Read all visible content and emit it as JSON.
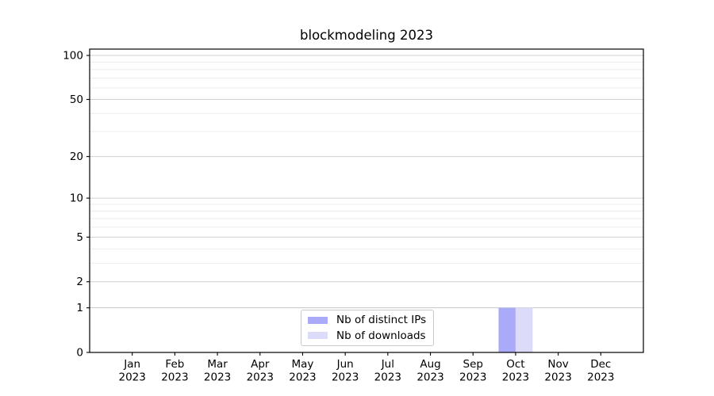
{
  "figure": {
    "background": "#ffffff"
  },
  "chart_data": {
    "type": "bar",
    "title": "blockmodeling 2023",
    "categories": [
      "Jan",
      "Feb",
      "Mar",
      "Apr",
      "May",
      "Jun",
      "Jul",
      "Aug",
      "Sep",
      "Oct",
      "Nov",
      "Dec"
    ],
    "category_year_label": "2023",
    "series": [
      {
        "name": "Nb of distinct IPs",
        "color": "#aaaaf8",
        "values": [
          0,
          0,
          0,
          0,
          0,
          0,
          0,
          0,
          0,
          1,
          0,
          0
        ]
      },
      {
        "name": "Nb of downloads",
        "color": "#dcdcfa",
        "values": [
          0,
          0,
          0,
          0,
          0,
          0,
          0,
          0,
          0,
          1,
          0,
          0
        ]
      }
    ],
    "xlabel": "",
    "ylabel": "",
    "y_axis": {
      "scale": "log1p",
      "major_ticks": [
        0,
        1,
        2,
        5,
        10,
        20,
        50,
        100
      ],
      "minor_ticks": [
        3,
        4,
        6,
        7,
        8,
        9,
        30,
        40,
        60,
        70,
        80,
        90
      ],
      "ylim": [
        0,
        111
      ],
      "grid": "both"
    },
    "legend": {
      "position": "lower center"
    },
    "colors": {
      "axis_frame": "#000000",
      "tick_text": "#000000",
      "grid_major": "#d0d0d0",
      "grid_minor": "#ebebeb",
      "grid_unit_line": "#c6c6c6"
    }
  }
}
